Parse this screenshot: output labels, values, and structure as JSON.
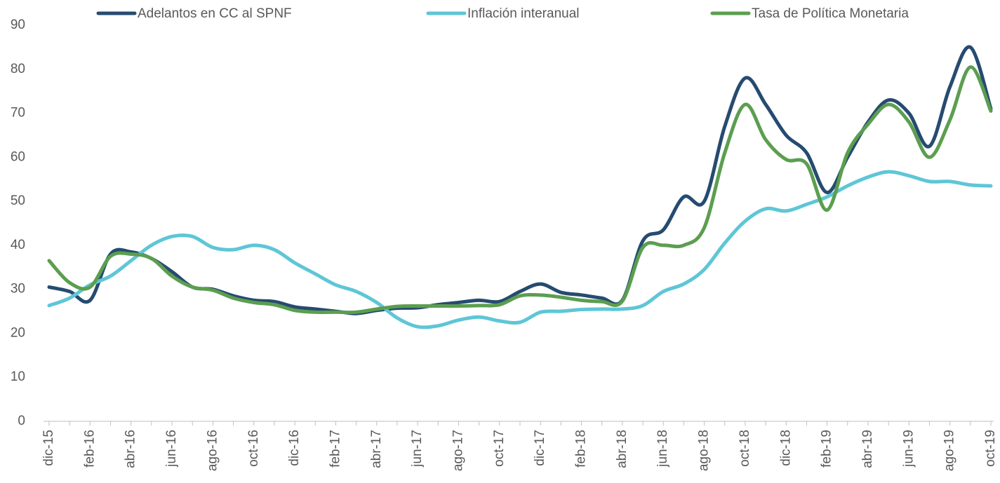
{
  "chart_data": {
    "type": "line",
    "categories": [
      "dic-15",
      null,
      "feb-16",
      null,
      "abr-16",
      null,
      "jun-16",
      null,
      "ago-16",
      null,
      "oct-16",
      null,
      "dic-16",
      null,
      "feb-17",
      null,
      "abr-17",
      null,
      "jun-17",
      null,
      "ago-17",
      null,
      "oct-17",
      null,
      "dic-17",
      null,
      "feb-18",
      null,
      "abr-18",
      null,
      "jun-18",
      null,
      "ago-18",
      null,
      "oct-18",
      null,
      "dic-18",
      null,
      "feb-19",
      null,
      "abr-19",
      null,
      "jun-19",
      null,
      "ago-19",
      null,
      "oct-19"
    ],
    "series": [
      {
        "name": "Adelantos en CC al SPNF",
        "color": "#264b70",
        "values": [
          30.5,
          29.5,
          27.5,
          38,
          38.5,
          37,
          34,
          30.5,
          30,
          28.5,
          27.5,
          27.2,
          26,
          25.5,
          25,
          24.5,
          25.2,
          25.7,
          25.8,
          26.5,
          27,
          27.5,
          27.2,
          29.5,
          31.2,
          29.3,
          28.7,
          28,
          27.5,
          41,
          43.5,
          51,
          50,
          67,
          78,
          72,
          65,
          61,
          52,
          60,
          68,
          73,
          70,
          62.5,
          76,
          85,
          71
        ]
      },
      {
        "name": "Inflación interanual",
        "color": "#5ec6d6",
        "values": [
          26.3,
          28,
          31,
          33,
          36.5,
          40,
          42,
          42,
          39.5,
          39,
          40,
          39,
          36,
          33.5,
          31,
          29.5,
          27,
          23.5,
          21.5,
          21.7,
          23,
          23.7,
          22.8,
          22.5,
          24.8,
          25,
          25.4,
          25.5,
          25.5,
          26.3,
          29.5,
          31.2,
          34.5,
          40.5,
          45.5,
          48.3,
          47.8,
          49.3,
          51,
          53.5,
          55.5,
          56.7,
          55.8,
          54.5,
          54.5,
          53.7,
          53.5
        ]
      },
      {
        "name": "Tasa de Política Monetaria",
        "color": "#5b9e4f",
        "values": [
          36.5,
          31.5,
          30.5,
          37.5,
          38,
          37,
          33,
          30.5,
          29.8,
          28,
          27,
          26.5,
          25.2,
          24.8,
          24.8,
          24.8,
          25.5,
          26.1,
          26.2,
          26.2,
          26.2,
          26.3,
          26.5,
          28.5,
          28.7,
          28.2,
          27.5,
          27.2,
          27.3,
          39.5,
          40,
          40,
          44,
          61,
          72,
          64,
          59.5,
          58.5,
          48,
          61,
          67.5,
          72,
          68,
          60,
          68.5,
          80.5,
          70.5
        ]
      }
    ],
    "ylim": [
      0,
      90
    ],
    "yticks": [
      0,
      10,
      20,
      30,
      40,
      50,
      60,
      70,
      80,
      90
    ],
    "grid": false,
    "legend": "top"
  }
}
